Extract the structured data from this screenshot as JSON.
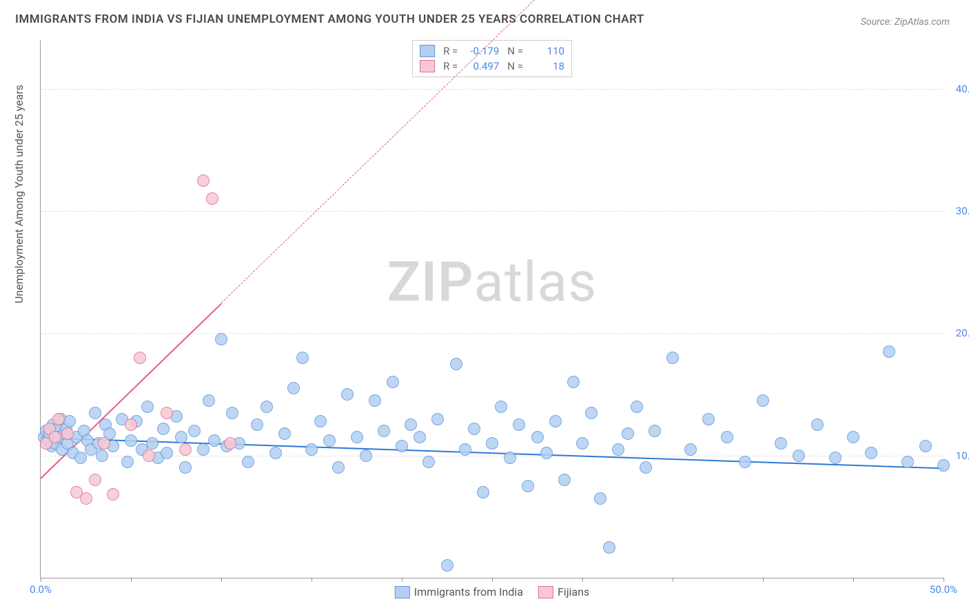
{
  "title": "IMMIGRANTS FROM INDIA VS FIJIAN UNEMPLOYMENT AMONG YOUTH UNDER 25 YEARS CORRELATION CHART",
  "source": "Source: ZipAtlas.com",
  "ylabel": "Unemployment Among Youth under 25 years",
  "watermark_a": "ZIP",
  "watermark_b": "atlas",
  "chart": {
    "type": "scatter",
    "xlim": [
      0,
      50
    ],
    "ylim": [
      0,
      44
    ],
    "background_color": "#ffffff",
    "grid_color": "#e0e0e0",
    "axis_color": "#999999",
    "xtick_positions": [
      0,
      5,
      10,
      15,
      20,
      25,
      30,
      35,
      40,
      45,
      50
    ],
    "xtick_labels": {
      "0": "0.0%",
      "50": "50.0%"
    },
    "ytick_positions": [
      10,
      20,
      30,
      40
    ],
    "ytick_labels": {
      "10": "10.0%",
      "20": "20.0%",
      "30": "30.0%",
      "40": "40.0%"
    },
    "tick_label_color": "#4a86e8",
    "tick_fontsize": 15
  },
  "series": [
    {
      "name": "Immigrants from India",
      "marker_fill": "#b3d0f2",
      "marker_stroke": "#5e98db",
      "marker_radius": 8,
      "R": "-0.179",
      "N": "110",
      "regression": {
        "x1": 0,
        "y1": 11.5,
        "x2": 50,
        "y2": 9.0,
        "color": "#2f78d6",
        "width": 2,
        "dashed": false
      },
      "points": [
        [
          0.2,
          11.5
        ],
        [
          0.3,
          12.0
        ],
        [
          0.4,
          11.2
        ],
        [
          0.5,
          11.8
        ],
        [
          0.6,
          10.8
        ],
        [
          0.7,
          12.5
        ],
        [
          0.8,
          11.0
        ],
        [
          0.9,
          12.2
        ],
        [
          1.0,
          11.5
        ],
        [
          1.1,
          13.0
        ],
        [
          1.2,
          10.5
        ],
        [
          1.3,
          11.8
        ],
        [
          1.4,
          12.2
        ],
        [
          1.5,
          11.0
        ],
        [
          1.6,
          12.8
        ],
        [
          1.8,
          10.2
        ],
        [
          2.0,
          11.5
        ],
        [
          2.2,
          9.8
        ],
        [
          2.4,
          12.0
        ],
        [
          2.6,
          11.2
        ],
        [
          2.8,
          10.5
        ],
        [
          3.0,
          13.5
        ],
        [
          3.2,
          11.0
        ],
        [
          3.4,
          10.0
        ],
        [
          3.6,
          12.5
        ],
        [
          3.8,
          11.8
        ],
        [
          4.0,
          10.8
        ],
        [
          4.5,
          13.0
        ],
        [
          4.8,
          9.5
        ],
        [
          5.0,
          11.2
        ],
        [
          5.3,
          12.8
        ],
        [
          5.6,
          10.5
        ],
        [
          5.9,
          14.0
        ],
        [
          6.2,
          11.0
        ],
        [
          6.5,
          9.8
        ],
        [
          6.8,
          12.2
        ],
        [
          7.0,
          10.2
        ],
        [
          7.5,
          13.2
        ],
        [
          7.8,
          11.5
        ],
        [
          8.0,
          9.0
        ],
        [
          8.5,
          12.0
        ],
        [
          9.0,
          10.5
        ],
        [
          9.3,
          14.5
        ],
        [
          9.6,
          11.2
        ],
        [
          10.0,
          19.5
        ],
        [
          10.3,
          10.8
        ],
        [
          10.6,
          13.5
        ],
        [
          11.0,
          11.0
        ],
        [
          11.5,
          9.5
        ],
        [
          12.0,
          12.5
        ],
        [
          12.5,
          14.0
        ],
        [
          13.0,
          10.2
        ],
        [
          13.5,
          11.8
        ],
        [
          14.0,
          15.5
        ],
        [
          14.5,
          18.0
        ],
        [
          15.0,
          10.5
        ],
        [
          15.5,
          12.8
        ],
        [
          16.0,
          11.2
        ],
        [
          16.5,
          9.0
        ],
        [
          17.0,
          15.0
        ],
        [
          17.5,
          11.5
        ],
        [
          18.0,
          10.0
        ],
        [
          18.5,
          14.5
        ],
        [
          19.0,
          12.0
        ],
        [
          19.5,
          16.0
        ],
        [
          20.0,
          10.8
        ],
        [
          20.5,
          12.5
        ],
        [
          21.0,
          11.5
        ],
        [
          21.5,
          9.5
        ],
        [
          22.0,
          13.0
        ],
        [
          22.5,
          1.0
        ],
        [
          23.0,
          17.5
        ],
        [
          23.5,
          10.5
        ],
        [
          24.0,
          12.2
        ],
        [
          24.5,
          7.0
        ],
        [
          25.0,
          11.0
        ],
        [
          25.5,
          14.0
        ],
        [
          26.0,
          9.8
        ],
        [
          26.5,
          12.5
        ],
        [
          27.0,
          7.5
        ],
        [
          27.5,
          11.5
        ],
        [
          28.0,
          10.2
        ],
        [
          28.5,
          12.8
        ],
        [
          29.0,
          8.0
        ],
        [
          29.5,
          16.0
        ],
        [
          30.0,
          11.0
        ],
        [
          30.5,
          13.5
        ],
        [
          31.0,
          6.5
        ],
        [
          31.5,
          2.5
        ],
        [
          32.0,
          10.5
        ],
        [
          32.5,
          11.8
        ],
        [
          33.0,
          14.0
        ],
        [
          33.5,
          9.0
        ],
        [
          34.0,
          12.0
        ],
        [
          35.0,
          18.0
        ],
        [
          36.0,
          10.5
        ],
        [
          37.0,
          13.0
        ],
        [
          38.0,
          11.5
        ],
        [
          39.0,
          9.5
        ],
        [
          40.0,
          14.5
        ],
        [
          41.0,
          11.0
        ],
        [
          42.0,
          10.0
        ],
        [
          43.0,
          12.5
        ],
        [
          44.0,
          9.8
        ],
        [
          45.0,
          11.5
        ],
        [
          46.0,
          10.2
        ],
        [
          47.0,
          18.5
        ],
        [
          48.0,
          9.5
        ],
        [
          49.0,
          10.8
        ],
        [
          50.0,
          9.2
        ]
      ]
    },
    {
      "name": "Fijians",
      "marker_fill": "#f7c8d4",
      "marker_stroke": "#e16f8f",
      "marker_radius": 8,
      "R": "0.497",
      "N": "18",
      "regression": {
        "x1": 0,
        "y1": 8.2,
        "x2": 10,
        "y2": 22.5,
        "color": "#e85a86",
        "width": 2,
        "dashed": false,
        "extend_to_x": 32,
        "extend_dashed": true
      },
      "points": [
        [
          0.3,
          11.0
        ],
        [
          0.5,
          12.2
        ],
        [
          0.8,
          11.5
        ],
        [
          1.0,
          13.0
        ],
        [
          1.5,
          11.8
        ],
        [
          2.0,
          7.0
        ],
        [
          2.5,
          6.5
        ],
        [
          3.0,
          8.0
        ],
        [
          3.5,
          11.0
        ],
        [
          4.0,
          6.8
        ],
        [
          5.0,
          12.5
        ],
        [
          5.5,
          18.0
        ],
        [
          6.0,
          10.0
        ],
        [
          7.0,
          13.5
        ],
        [
          8.0,
          10.5
        ],
        [
          9.0,
          32.5
        ],
        [
          9.5,
          31.0
        ],
        [
          10.5,
          11.0
        ]
      ]
    }
  ],
  "legend_bottom": [
    {
      "label": "Immigrants from India",
      "fill": "#b3d0f2",
      "stroke": "#5e98db"
    },
    {
      "label": "Fijians",
      "fill": "#f7c8d4",
      "stroke": "#e16f8f"
    }
  ]
}
